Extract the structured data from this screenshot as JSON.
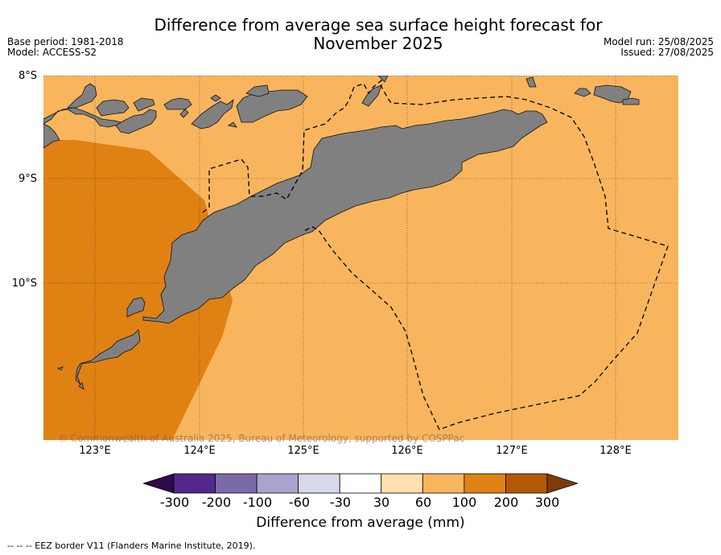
{
  "title_line1": "Difference from average sea surface height forecast for",
  "title_line2": "November 2025",
  "base_period": "Base period: 1981-2018",
  "model": "Model: ACCESS-S2",
  "model_run": "Model run: 25/08/2025",
  "issued": "Issued: 27/08/2025",
  "lat_labels": [
    "8°S",
    "9°S",
    "10°S"
  ],
  "lon_labels": [
    "123°E",
    "124°E",
    "125°E",
    "126°E",
    "127°E",
    "128°E"
  ],
  "copyright": "© Commonwealth of Australia 2025, Bureau of Meteorology, supported by COSPPac",
  "colorbar": {
    "label": "Difference from average (mm)",
    "ticks": [
      "-300",
      "-200",
      "-100",
      "-60",
      "-30",
      "30",
      "60",
      "100",
      "200",
      "300"
    ],
    "colors": [
      "#2d0a4a",
      "#52288a",
      "#7b6aa8",
      "#aba3cd",
      "#d8d9ea",
      "#ffffff",
      "#fedfb0",
      "#f9b55d",
      "#e08114",
      "#b35806",
      "#7f3b08"
    ]
  },
  "legend_text": "--  --  -- EEZ border V11 (Flanders Marine Institute, 2019).",
  "map_colors": {
    "sea_60_100": "#f9b55d",
    "sea_100_200": "#e08114",
    "land": "#808080"
  }
}
